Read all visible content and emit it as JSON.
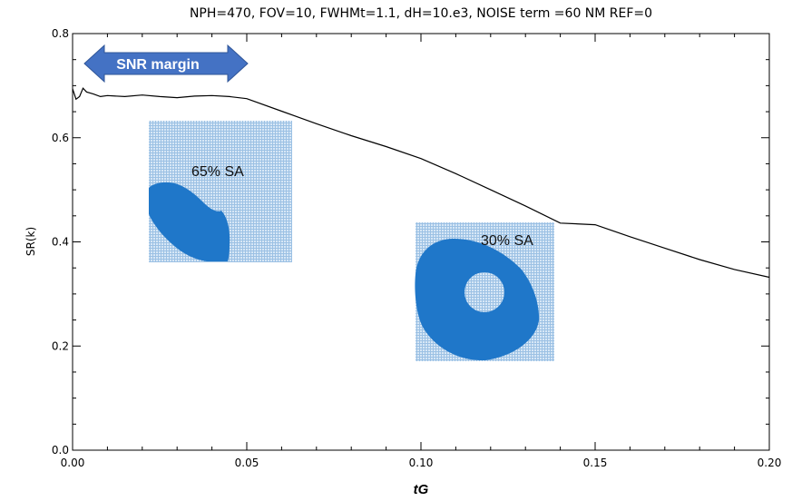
{
  "chart_data": {
    "type": "line",
    "title": "NPH=470, FOV=10, FWHMt=1.1, dH=10.e3, NOISE term =60 NM REF=0",
    "xlabel": "tG",
    "ylabel": "SR(k)",
    "xlim": [
      0.0,
      0.2
    ],
    "ylim": [
      0.0,
      0.8
    ],
    "xticks": [
      "0.00",
      "0.05",
      "0.10",
      "0.15",
      "0.20"
    ],
    "yticks": [
      "0.0",
      "0.2",
      "0.4",
      "0.6",
      "0.8"
    ],
    "grid": false,
    "series": [
      {
        "x": [
          0.0,
          0.001,
          0.002,
          0.003,
          0.004,
          0.006,
          0.008,
          0.01,
          0.015,
          0.02,
          0.025,
          0.03,
          0.035,
          0.04,
          0.045,
          0.05,
          0.06,
          0.07,
          0.08,
          0.09,
          0.1,
          0.11,
          0.12,
          0.13,
          0.14,
          0.15,
          0.16,
          0.17,
          0.18,
          0.19,
          0.2
        ],
        "y": [
          0.694,
          0.674,
          0.679,
          0.695,
          0.688,
          0.684,
          0.679,
          0.681,
          0.679,
          0.682,
          0.679,
          0.677,
          0.68,
          0.681,
          0.679,
          0.675,
          0.651,
          0.627,
          0.604,
          0.583,
          0.56,
          0.531,
          0.5,
          0.469,
          0.436,
          0.433,
          0.41,
          0.388,
          0.366,
          0.347,
          0.332
        ]
      }
    ]
  },
  "annotations": {
    "arrow_label": "SNR margin",
    "inset1_label": "65% SA",
    "inset2_label": "30% SA"
  },
  "colors": {
    "line": "#000000",
    "arrow_fill": "#4472c4",
    "arrow_stroke": "#2f5597",
    "pupil_fill": "#1f77c9",
    "grid_bg": "#bcd6ee"
  }
}
